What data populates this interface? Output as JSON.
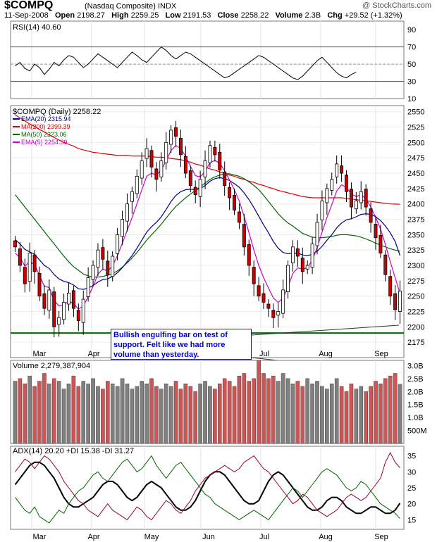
{
  "header": {
    "symbol": "$COMPQ",
    "name": "(Nasdaq Composite)",
    "exchange": "INDX",
    "copyright": "@ StockCharts.com",
    "date": "11-Sep-2008",
    "open_label": "Open",
    "open": "2198.27",
    "high_label": "High",
    "high": "2259.25",
    "low_label": "Low",
    "low": "2191.53",
    "close_label": "Close",
    "close": "2258.22",
    "volume_label": "Volume",
    "volume": "2.3B",
    "chg_label": "Chg",
    "chg": "+29.52 (+1.32%)"
  },
  "annotation": {
    "text": "Bullish engulfing bar on test of support.  Felt like we had more volume than yesterday."
  },
  "colors": {
    "up_candle": "#ffffff",
    "down_candle": "#cc0000",
    "ema20": "#000080",
    "ma200": "#e00000",
    "ma50": "#006600",
    "ema5": "#cc00cc",
    "support": "#006600",
    "vol_up": "#808080",
    "vol_down": "#cc5555",
    "adx": "#000000",
    "plus_di": "#006600",
    "minus_di": "#990033"
  },
  "chart_data": [
    {
      "type": "line",
      "panel": "RSI",
      "legend": "RSI(14) 40.60",
      "ylim": [
        10,
        100
      ],
      "yticks": [
        10,
        30,
        50,
        70,
        90
      ],
      "reference_lines": [
        30,
        50,
        70
      ],
      "values": [
        48,
        52,
        45,
        42,
        50,
        46,
        38,
        44,
        52,
        48,
        55,
        60,
        58,
        52,
        46,
        50,
        56,
        62,
        58,
        54,
        50,
        46,
        52,
        58,
        64,
        60,
        55,
        52,
        58,
        64,
        70,
        66,
        60,
        56,
        60,
        64,
        62,
        58,
        54,
        50,
        46,
        42,
        38,
        34,
        36,
        40,
        44,
        48,
        52,
        56,
        60,
        58,
        54,
        50,
        46,
        42,
        38,
        34,
        32,
        36,
        42,
        48,
        54,
        58,
        52,
        46,
        40,
        36,
        34,
        38,
        40.6
      ]
    },
    {
      "type": "candlestick",
      "panel": "Price",
      "legend": "$COMPQ (Daily) 2258.22",
      "ylim": [
        2150,
        2560
      ],
      "yticks": [
        2175,
        2200,
        2225,
        2250,
        2275,
        2300,
        2325,
        2350,
        2375,
        2400,
        2425,
        2450,
        2475,
        2500,
        2525,
        2550
      ],
      "x_labels": [
        "Mar",
        "Apr",
        "May",
        "Jun",
        "Jul",
        "Aug",
        "Sep"
      ],
      "support_level": 2190,
      "series": [
        {
          "name": "EMA(20) 2315.94",
          "color": "#000080"
        },
        {
          "name": "MA(200) 2399.39",
          "color": "#e00000"
        },
        {
          "name": "MA(50) 2323.06",
          "color": "#006600"
        },
        {
          "name": "EMA(5) 2254.39",
          "color": "#cc00cc"
        }
      ],
      "close": [
        2330,
        2300,
        2270,
        2320,
        2290,
        2250,
        2230,
        2260,
        2200,
        2215,
        2240,
        2255,
        2230,
        2210,
        2245,
        2280,
        2300,
        2325,
        2310,
        2285,
        2315,
        2350,
        2375,
        2400,
        2420,
        2445,
        2470,
        2490,
        2460,
        2440,
        2470,
        2500,
        2520,
        2510,
        2480,
        2450,
        2430,
        2415,
        2440,
        2470,
        2495,
        2480,
        2455,
        2430,
        2410,
        2390,
        2370,
        2330,
        2300,
        2270,
        2250,
        2240,
        2230,
        2215,
        2225,
        2260,
        2300,
        2330,
        2315,
        2290,
        2300,
        2335,
        2370,
        2405,
        2425,
        2440,
        2465,
        2450,
        2420,
        2395,
        2405,
        2420,
        2395,
        2370,
        2345,
        2320,
        2285,
        2250,
        2228,
        2258.22
      ],
      "ema20": [
        2342,
        2335,
        2326,
        2322,
        2318,
        2309,
        2300,
        2295,
        2285,
        2278,
        2274,
        2272,
        2268,
        2262,
        2261,
        2263,
        2267,
        2273,
        2277,
        2278,
        2282,
        2288,
        2296,
        2306,
        2316,
        2328,
        2341,
        2354,
        2363,
        2370,
        2379,
        2391,
        2404,
        2414,
        2420,
        2423,
        2424,
        2423,
        2425,
        2430,
        2437,
        2441,
        2443,
        2441,
        2438,
        2433,
        2427,
        2418,
        2407,
        2394,
        2380,
        2366,
        2353,
        2339,
        2328,
        2321,
        2319,
        2320,
        2320,
        2317,
        2316,
        2318,
        2323,
        2331,
        2341,
        2350,
        2361,
        2369,
        2374,
        2376,
        2379,
        2383,
        2384,
        2383,
        2379,
        2373,
        2364,
        2353,
        2339,
        2315.94
      ],
      "ma200": [
        2545,
        2540,
        2535,
        2530,
        2526,
        2521,
        2517,
        2512,
        2508,
        2504,
        2500,
        2497,
        2494,
        2490,
        2488,
        2486,
        2484,
        2483,
        2482,
        2481,
        2480,
        2479,
        2479,
        2479,
        2478,
        2478,
        2478,
        2478,
        2477,
        2476,
        2476,
        2475,
        2474,
        2473,
        2472,
        2470,
        2468,
        2465,
        2463,
        2460,
        2457,
        2455,
        2452,
        2450,
        2447,
        2445,
        2442,
        2440,
        2437,
        2435,
        2432,
        2430,
        2427,
        2425,
        2422,
        2420,
        2418,
        2416,
        2414,
        2412,
        2411,
        2410,
        2410,
        2410,
        2410,
        2410,
        2410,
        2410,
        2409,
        2408,
        2407,
        2406,
        2405,
        2404,
        2403,
        2402,
        2401,
        2400,
        2399.8,
        2399.39
      ],
      "ma50": [
        2415,
        2405,
        2395,
        2385,
        2375,
        2365,
        2355,
        2345,
        2335,
        2325,
        2315,
        2306,
        2298,
        2292,
        2286,
        2283,
        2281,
        2281,
        2282,
        2284,
        2287,
        2291,
        2297,
        2304,
        2312,
        2321,
        2331,
        2341,
        2350,
        2358,
        2367,
        2377,
        2387,
        2396,
        2403,
        2410,
        2416,
        2422,
        2428,
        2434,
        2440,
        2444,
        2447,
        2449,
        2449,
        2447,
        2445,
        2441,
        2436,
        2430,
        2423,
        2414,
        2404,
        2394,
        2384,
        2376,
        2369,
        2364,
        2358,
        2352,
        2349,
        2346,
        2345,
        2345,
        2346,
        2347,
        2349,
        2350,
        2350,
        2349,
        2348,
        2346,
        2343,
        2340,
        2336,
        2333,
        2330,
        2327,
        2325,
        2323.06
      ],
      "ema5": [
        2320,
        2313,
        2299,
        2306,
        2301,
        2284,
        2266,
        2264,
        2243,
        2234,
        2236,
        2242,
        2238,
        2229,
        2234,
        2249,
        2266,
        2286,
        2294,
        2291,
        2299,
        2316,
        2336,
        2357,
        2378,
        2400,
        2423,
        2445,
        2450,
        2447,
        2455,
        2470,
        2487,
        2495,
        2490,
        2477,
        2461,
        2446,
        2444,
        2453,
        2467,
        2471,
        2466,
        2454,
        2439,
        2423,
        2405,
        2380,
        2353,
        2325,
        2300,
        2280,
        2263,
        2247,
        2240,
        2247,
        2265,
        2287,
        2296,
        2294,
        2296,
        2309,
        2329,
        2354,
        2378,
        2399,
        2421,
        2431,
        2427,
        2416,
        2412,
        2415,
        2408,
        2395,
        2378,
        2359,
        2334,
        2306,
        2280,
        2254.39
      ]
    },
    {
      "type": "bar",
      "panel": "Volume",
      "legend": "Volume 2,279,387,904",
      "ylim": [
        0,
        3.2
      ],
      "yticks": [
        0.5,
        1.0,
        1.5,
        2.0,
        2.5,
        3.0
      ],
      "ytick_labels": [
        "500M",
        "1.0B",
        "1.5B",
        "2.0B",
        "2.5B",
        "3.0B"
      ],
      "values": [
        2.4,
        2.5,
        2.3,
        2.6,
        2.2,
        2.4,
        2.7,
        2.3,
        2.5,
        2.4,
        2.1,
        2.3,
        2.6,
        2.2,
        2.4,
        2.3,
        2.5,
        2.2,
        2.1,
        2.4,
        2.3,
        2.2,
        2.5,
        2.3,
        2.1,
        2.2,
        2.4,
        2.3,
        2.5,
        2.2,
        2.1,
        2.3,
        2.2,
        2.4,
        2.1,
        2.3,
        2.2,
        2.0,
        2.3,
        2.4,
        2.2,
        2.1,
        2.3,
        2.5,
        2.4,
        2.2,
        2.6,
        2.7,
        2.4,
        2.5,
        3.2,
        2.7,
        2.5,
        2.6,
        2.4,
        2.7,
        2.5,
        2.3,
        2.4,
        2.2,
        2.5,
        2.3,
        2.4,
        2.2,
        2.1,
        2.3,
        2.5,
        2.2,
        2.0,
        2.3,
        2.1,
        2.2,
        2.0,
        2.2,
        2.4,
        2.3,
        2.5,
        2.6,
        2.7,
        2.28
      ],
      "up": [
        true,
        false,
        false,
        true,
        false,
        false,
        false,
        true,
        false,
        true,
        true,
        true,
        false,
        false,
        true,
        true,
        true,
        true,
        false,
        false,
        true,
        true,
        true,
        true,
        true,
        true,
        true,
        true,
        false,
        false,
        true,
        true,
        true,
        false,
        false,
        false,
        false,
        false,
        true,
        true,
        true,
        false,
        false,
        false,
        false,
        false,
        false,
        false,
        false,
        false,
        false,
        false,
        false,
        false,
        true,
        true,
        true,
        true,
        false,
        false,
        true,
        true,
        true,
        true,
        true,
        true,
        true,
        false,
        false,
        false,
        true,
        true,
        false,
        false,
        false,
        false,
        false,
        false,
        false,
        true
      ]
    },
    {
      "type": "line",
      "panel": "ADX",
      "legend": "ADX(14) 20.20 +DI 15.38 -DI 31.27",
      "ylim": [
        12,
        38
      ],
      "yticks": [
        15,
        20,
        25,
        30,
        35
      ],
      "series": [
        {
          "name": "ADX(14) 20.20",
          "values": [
            26,
            28,
            30,
            32,
            33,
            33,
            32,
            30,
            28,
            25,
            22,
            20,
            19,
            19,
            20,
            21,
            22,
            24,
            26,
            27,
            27,
            26,
            24,
            22,
            21,
            22,
            24,
            26,
            27,
            26,
            25,
            23,
            21,
            19,
            18,
            18,
            19,
            21,
            24,
            27,
            29,
            30,
            30,
            29,
            27,
            25,
            23,
            21,
            20,
            20,
            21,
            24,
            27,
            29,
            30,
            29,
            27,
            25,
            23,
            21,
            19,
            18,
            18,
            19,
            21,
            22,
            22,
            21,
            19,
            18,
            17,
            17,
            18,
            19,
            19,
            18,
            17,
            17,
            18,
            20.2
          ]
        },
        {
          "name": "+DI 15.38",
          "values": [
            22,
            20,
            18,
            17,
            19,
            16,
            15,
            14,
            16,
            18,
            17,
            20,
            22,
            24,
            25,
            27,
            29,
            30,
            28,
            27,
            29,
            31,
            33,
            34,
            32,
            30,
            31,
            33,
            35,
            32,
            30,
            28,
            30,
            32,
            33,
            31,
            29,
            27,
            25,
            23,
            22,
            20,
            19,
            18,
            17,
            16,
            15,
            16,
            17,
            18,
            17,
            16,
            15,
            17,
            19,
            21,
            23,
            25,
            24,
            22,
            24,
            26,
            28,
            30,
            31,
            30,
            29,
            27,
            25,
            24,
            25,
            27,
            26,
            24,
            22,
            20,
            19,
            18,
            17,
            15.38
          ]
        },
        {
          "name": "-DI 31.27",
          "values": [
            30,
            32,
            34,
            33,
            31,
            33,
            35,
            34,
            32,
            30,
            27,
            25,
            23,
            21,
            20,
            18,
            17,
            16,
            18,
            20,
            18,
            17,
            16,
            15,
            17,
            19,
            18,
            16,
            15,
            17,
            19,
            21,
            20,
            18,
            17,
            19,
            21,
            24,
            26,
            28,
            29,
            30,
            31,
            32,
            31,
            30,
            31,
            33,
            34,
            35,
            33,
            31,
            30,
            28,
            26,
            24,
            22,
            20,
            21,
            23,
            22,
            20,
            18,
            17,
            16,
            17,
            18,
            20,
            22,
            23,
            22,
            21,
            22,
            24,
            26,
            28,
            33,
            36,
            33,
            31.27
          ]
        }
      ]
    }
  ]
}
